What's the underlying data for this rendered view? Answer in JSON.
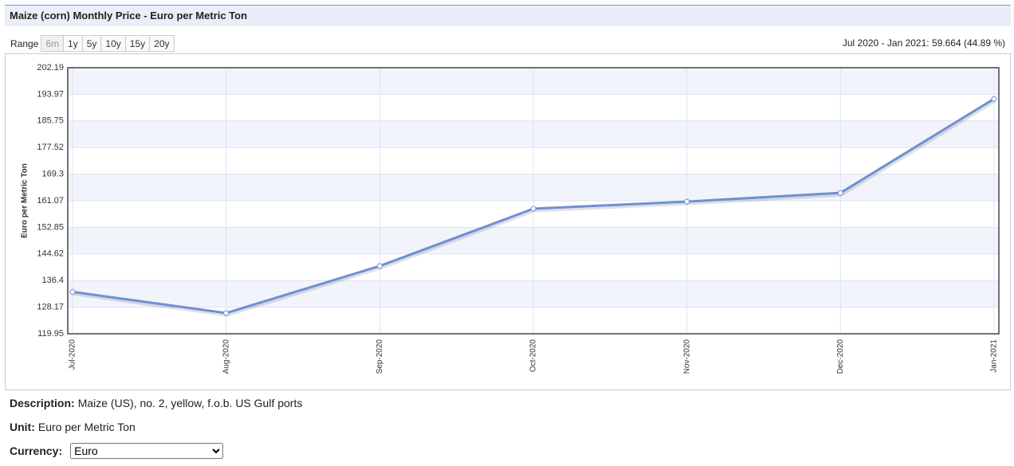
{
  "header": {
    "title": "Maize (corn) Monthly Price - Euro per Metric Ton"
  },
  "range": {
    "label": "Range",
    "buttons": [
      "6m",
      "1y",
      "5y",
      "10y",
      "15y",
      "20y"
    ],
    "summary": "Jul 2020 - Jan 2021: 59.664 (44.89 %)"
  },
  "chart_data": {
    "type": "line",
    "y_label": "Euro per Metric Ton",
    "categories": [
      "Jul-2020",
      "Aug-2020",
      "Sep-2020",
      "Oct-2020",
      "Nov-2020",
      "Dec-2020",
      "Jan-2021"
    ],
    "values": [
      132.91,
      126.35,
      140.9,
      158.6,
      160.8,
      163.5,
      192.57
    ],
    "color": "#6f8fd6",
    "ylim": [
      119.95,
      202.19
    ],
    "yticks": [
      119.95,
      128.17,
      136.4,
      144.62,
      152.85,
      161.07,
      169.3,
      177.52,
      185.75,
      193.97,
      202.19
    ],
    "grid": true
  },
  "details": {
    "description_label": "Description:",
    "description": "Maize (US), no. 2, yellow, f.o.b. US Gulf ports",
    "unit_label": "Unit:",
    "unit": "Euro per Metric Ton",
    "currency_label": "Currency:",
    "currency": "Euro"
  }
}
